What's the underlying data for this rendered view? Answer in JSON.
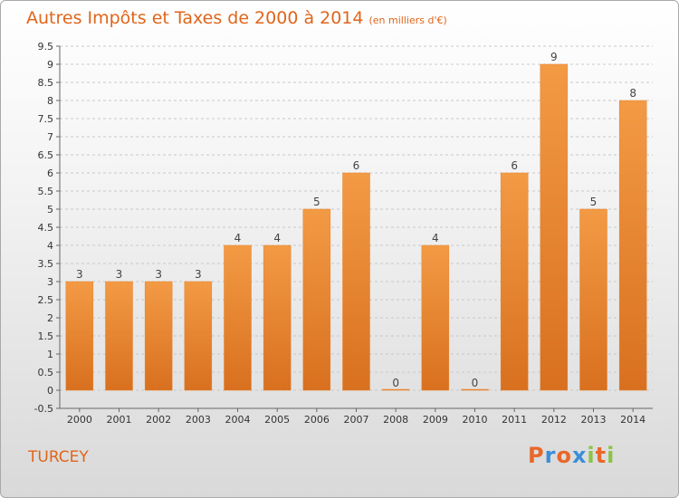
{
  "header": {
    "title": "Autres Impôts et Taxes de 2000 à 2014",
    "unit": "(en milliers d'€)"
  },
  "footer": {
    "place": "TURCEY",
    "logo": "Proxiti",
    "logo_colors": [
      "#e8682a",
      "#3b8ed8",
      "#e8682a",
      "#3b8ed8",
      "#8bc34a",
      "#e8682a",
      "#8bc34a"
    ]
  },
  "chart_data": {
    "type": "bar",
    "categories": [
      "2000",
      "2001",
      "2002",
      "2003",
      "2004",
      "2005",
      "2006",
      "2007",
      "2008",
      "2009",
      "2010",
      "2011",
      "2012",
      "2013",
      "2014"
    ],
    "values": [
      3,
      3,
      3,
      3,
      4,
      4,
      5,
      6,
      0,
      4,
      0,
      6,
      9,
      5,
      8
    ],
    "data_labels": [
      "3",
      "3",
      "3",
      "3",
      "4",
      "4",
      "5",
      "6",
      "0",
      "4",
      "0",
      "6",
      "9",
      "5",
      "8"
    ],
    "yticks": [
      "9.5",
      "9",
      "8.5",
      "8",
      "7.5",
      "7",
      "6.5",
      "6",
      "5.5",
      "5",
      "4.5",
      "4",
      "3.5",
      "3",
      "2.5",
      "2",
      "1.5",
      "1",
      "0.5",
      "0",
      "-0.5"
    ],
    "ylim": [
      -0.5,
      9.5
    ],
    "bar_color": "#f39a45",
    "bar_color_dark": "#d8701f",
    "grid": "dashed"
  }
}
